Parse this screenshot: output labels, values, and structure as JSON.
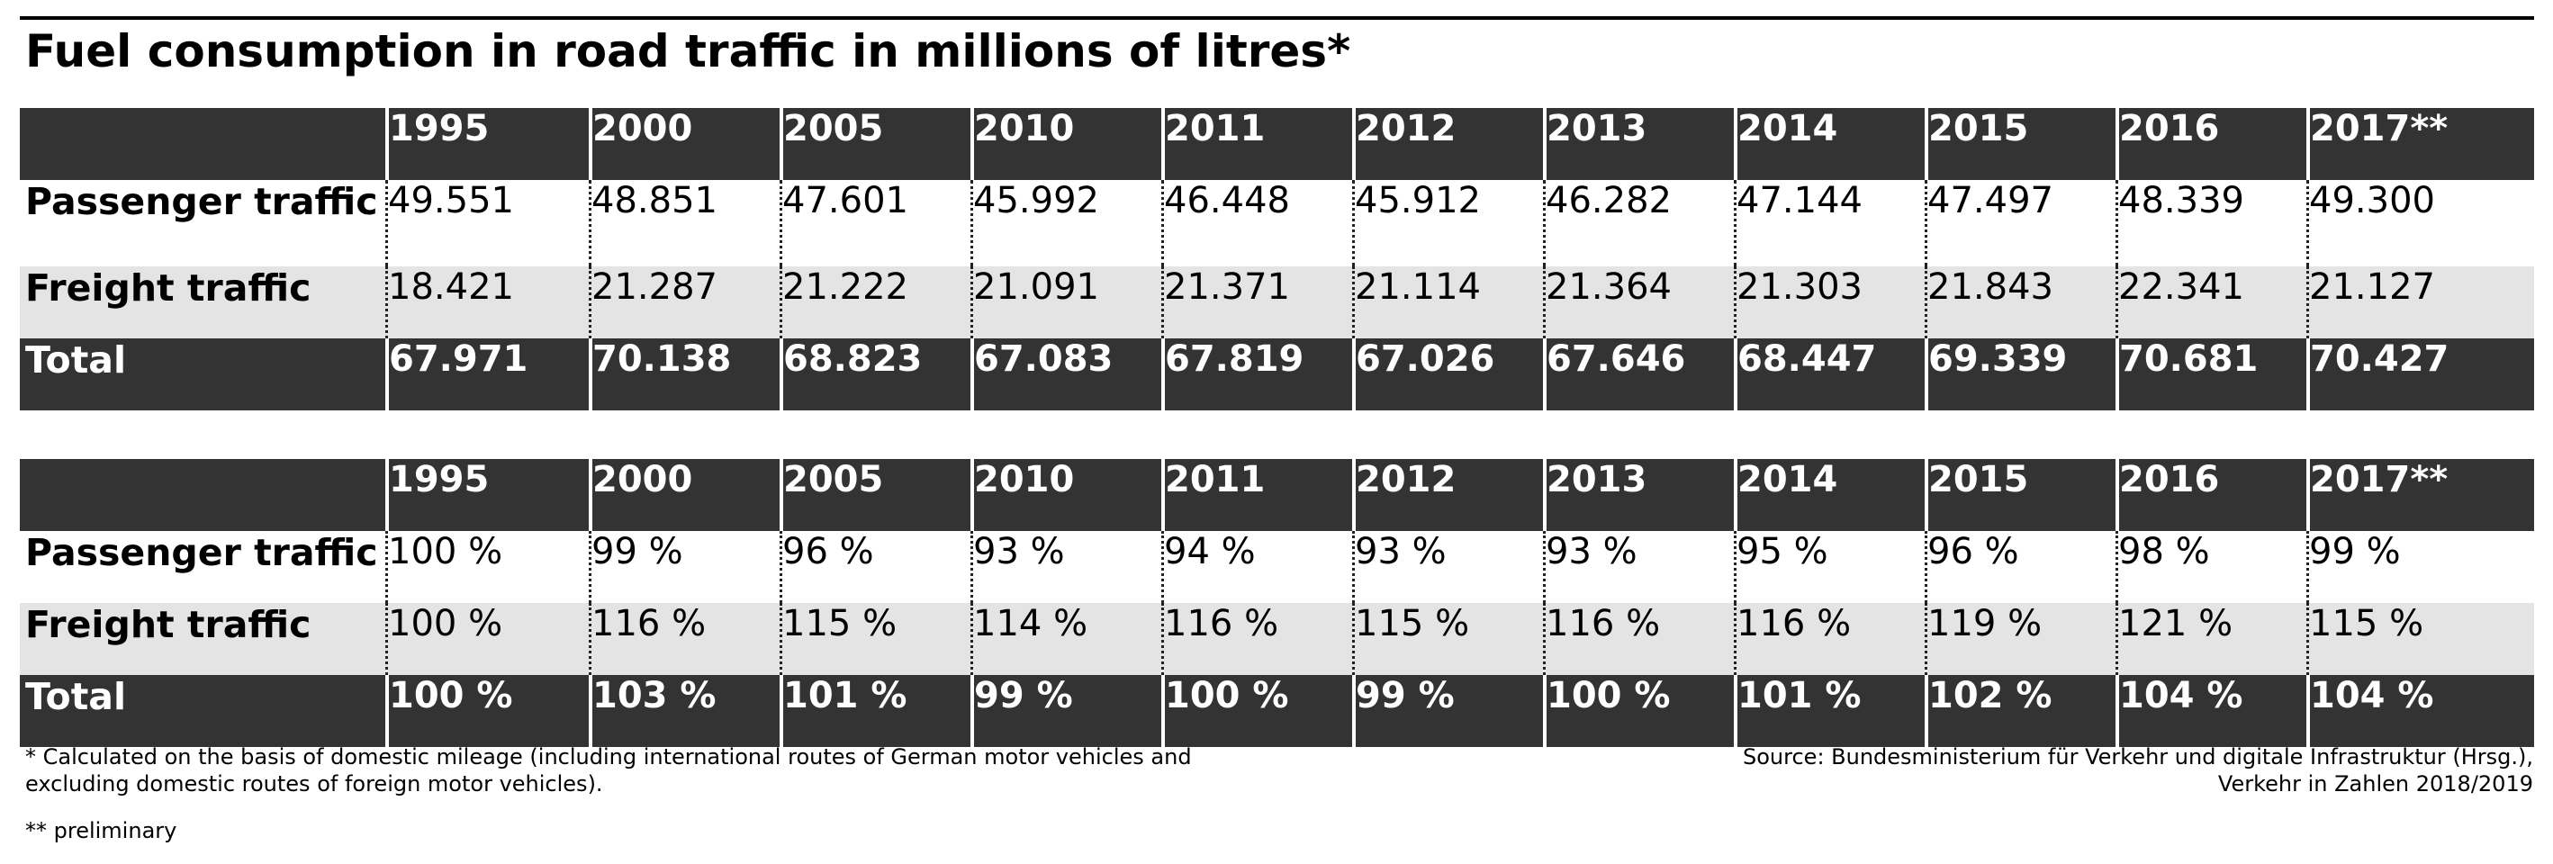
{
  "title": "Fuel consumption in road traffic in millions of litres*",
  "years": [
    "1995",
    "2000",
    "2005",
    "2010",
    "2011",
    "2012",
    "2013",
    "2014",
    "2015",
    "2016",
    "2017**"
  ],
  "table_absolute": {
    "rows": [
      {
        "label": "Passenger traffic",
        "values": [
          "49.551",
          "48.851",
          "47.601",
          "45.992",
          "46.448",
          "45.912",
          "46.282",
          "47.144",
          "47.497",
          "48.339",
          "49.300"
        ]
      },
      {
        "label": "Freight traffic",
        "values": [
          "18.421",
          "21.287",
          "21.222",
          "21.091",
          "21.371",
          "21.114",
          "21.364",
          "21.303",
          "21.843",
          "22.341",
          "21.127"
        ]
      },
      {
        "label": "Total",
        "values": [
          "67.971",
          "70.138",
          "68.823",
          "67.083",
          "67.819",
          "67.026",
          "67.646",
          "68.447",
          "69.339",
          "70.681",
          "70.427"
        ]
      }
    ]
  },
  "table_index": {
    "rows": [
      {
        "label": "Passenger traffic",
        "values": [
          "100 %",
          "99 %",
          "96 %",
          "93 %",
          "94 %",
          "93 %",
          "93 %",
          "95 %",
          "96 %",
          "98 %",
          "99 %"
        ]
      },
      {
        "label": "Freight traffic",
        "values": [
          "100 %",
          "116 %",
          "115 %",
          "114 %",
          "116 %",
          "115 %",
          "116 %",
          "116 %",
          "119 %",
          "121 %",
          "115 %"
        ]
      },
      {
        "label": "Total",
        "values": [
          "100 %",
          "103 %",
          "101 %",
          "99 %",
          "100 %",
          "99 %",
          "100 %",
          "101 %",
          "102 %",
          "104 %",
          "104 %"
        ]
      }
    ]
  },
  "footnotes": {
    "note1_line1": "* Calculated on the basis of domestic mileage (including international routes of German motor vehicles and",
    "note1_line2": "excluding domestic routes of foreign motor vehicles).",
    "note2": "** preliminary"
  },
  "source": {
    "line1": "Source: Bundesministerium für Verkehr und digitale Infrastruktur (Hrsg.),",
    "line2": "Verkehr in Zahlen 2018/2019"
  }
}
